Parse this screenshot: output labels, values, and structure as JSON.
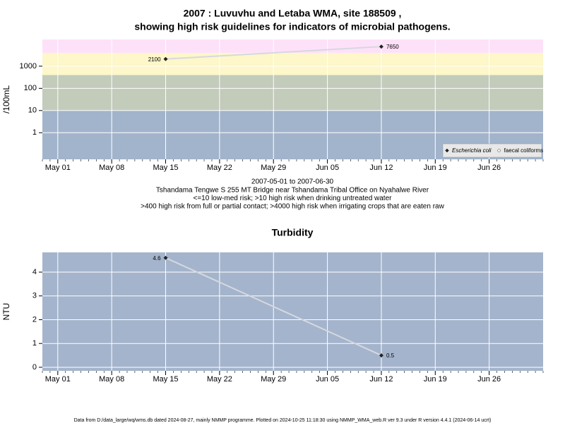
{
  "chart_data": [
    {
      "type": "line",
      "title": [
        "2007 : Luvuvhu and Letaba WMA, site 188509 ,",
        "showing high risk guidelines for indicators of microbial pathogens."
      ],
      "y_label": "/100mL",
      "log_scale": true,
      "x": [
        "May 15",
        "Jun 12"
      ],
      "xlim": [
        "Apr 29",
        "Jul 03"
      ],
      "xticks": [
        "May 01",
        "May 08",
        "May 15",
        "May 22",
        "May 29",
        "Jun 05",
        "Jun 12",
        "Jun 19",
        "Jun 26"
      ],
      "ylim": [
        0.063,
        16000
      ],
      "yticks": [
        1,
        10,
        100,
        1000
      ],
      "grid": true,
      "bands": [
        {
          "from": 0.063,
          "to": 10,
          "color": "#a2b4cb"
        },
        {
          "from": 10,
          "to": 400,
          "color": "#c3cbbb"
        },
        {
          "from": 400,
          "to": 4000,
          "color": "#fdf7c9"
        },
        {
          "from": 4000,
          "to": 16000,
          "color": "#fde1f9"
        }
      ],
      "series": [
        {
          "name": "Escherichia coli",
          "color": "#222222",
          "values": [
            2100,
            7650
          ]
        },
        {
          "name": "faecal coliforms",
          "color": "#ffffff",
          "values": [
            null,
            null
          ]
        }
      ],
      "legend": "bottom-right",
      "notes": [
        "2007-05-01 to 2007-06-30",
        "Tshandama Tengwe S 255 MT Bridge near Tshandama Tribal Office on Nyahalwe River",
        "<=10 low-med risk; >10 high risk when drinking untreated water",
        ">400 high risk from full or partial contact; >4000 high risk when irrigating crops that are eaten raw"
      ]
    },
    {
      "type": "line",
      "title": [
        "Turbidity"
      ],
      "y_label": "NTU",
      "log_scale": false,
      "x": [
        "May 15",
        "Jun 12"
      ],
      "xlim": [
        "Apr 29",
        "Jul 03"
      ],
      "xticks": [
        "May 01",
        "May 08",
        "May 15",
        "May 22",
        "May 29",
        "Jun 05",
        "Jun 12",
        "Jun 19",
        "Jun 26"
      ],
      "ylim": [
        -0.15,
        4.83
      ],
      "yticks": [
        0,
        1,
        2,
        3,
        4
      ],
      "grid": true,
      "background": "#a4b4cc",
      "series": [
        {
          "name": "Turbidity",
          "color": "#222222",
          "values": [
            4.6,
            0.5
          ]
        }
      ]
    }
  ],
  "footer": "Data from D:/data_large/wq/wms.db dated 2024-08-27, mainly NMMP programme. Plotted on 2024-10-25 11:18:30 using NMMP_WMA_web.R ver 9.3 under R version 4.4.1 (2024-06-14 ucrt)"
}
